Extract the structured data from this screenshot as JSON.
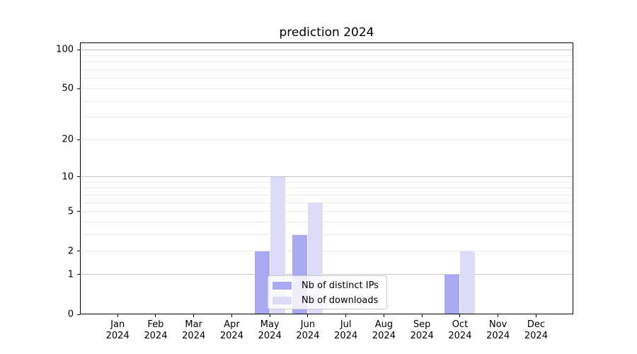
{
  "chart_data": {
    "type": "bar",
    "title": "prediction 2024",
    "categories": [
      "Jan",
      "Feb",
      "Mar",
      "Apr",
      "May",
      "Jun",
      "Jul",
      "Aug",
      "Sep",
      "Oct",
      "Nov",
      "Dec"
    ],
    "x_tick_second_line": "2024",
    "series": [
      {
        "name": "Nb of distinct IPs",
        "color": "#a9a9f3",
        "values": [
          0,
          0,
          0,
          0,
          2,
          3,
          0,
          0,
          0,
          1,
          0,
          0
        ]
      },
      {
        "name": "Nb of downloads",
        "color": "#dddcf8",
        "values": [
          0,
          0,
          0,
          0,
          10,
          6,
          0,
          0,
          0,
          2,
          0,
          0
        ]
      }
    ],
    "yscale": "log10(x+1)",
    "ylim": [
      0,
      113
    ],
    "yticks": [
      0,
      1,
      2,
      5,
      10,
      20,
      50,
      100
    ],
    "major_gridline_values": [
      1,
      10,
      100
    ],
    "minor_gridline_values": [
      2,
      3,
      4,
      5,
      6,
      7,
      8,
      9,
      20,
      30,
      40,
      50,
      60,
      70,
      80,
      90
    ],
    "grid": "on",
    "legend_position": "lower center-right inside plot",
    "colors": {
      "grid_major": "#c6c6c6",
      "grid_minor": "#ececec",
      "axis": "#000000",
      "text": "#000000",
      "background": "#ffffff"
    }
  }
}
